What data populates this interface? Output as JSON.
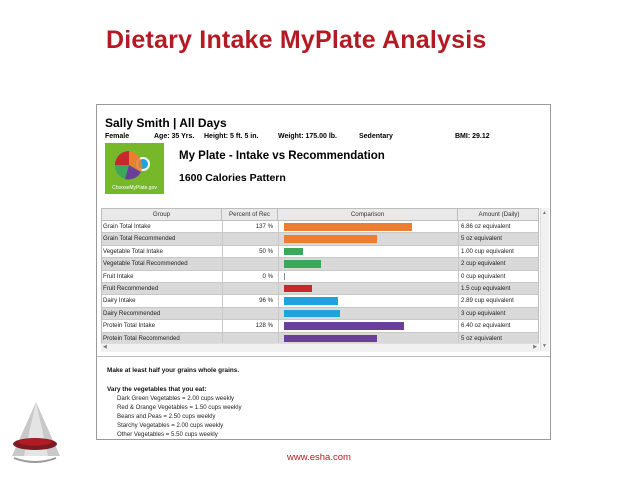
{
  "slide": {
    "title": "Dietary Intake MyPlate Analysis",
    "footer": "www.esha.com"
  },
  "profile": {
    "name": "Sally Smith | All Days",
    "gender": "Female",
    "age": "Age: 35 Yrs.",
    "height": "Height: 5 ft. 5 in.",
    "weight": "Weight: 175.00 lb.",
    "activity": "Sedentary",
    "bmi": "BMI: 29.12"
  },
  "myplate": {
    "logo_text": "ChooseMyPlate.gov",
    "groups": [
      "Fruits",
      "Grains",
      "Vegetables",
      "Protein",
      "Dairy"
    ],
    "title": "My Plate - Intake vs Recommendation",
    "pattern": "1600 Calories Pattern"
  },
  "table": {
    "columns": [
      "Group",
      "Percent of Rec",
      "Comparison",
      "Amount (Daily)"
    ],
    "max_value": 9.2,
    "rows": [
      {
        "group": "Grain Total Intake",
        "pct": "137 %",
        "amount": "6.86 oz equivalent",
        "value": 6.86,
        "color": "#ee7d30"
      },
      {
        "group": "Grain Total Recommended",
        "pct": "",
        "amount": "5 oz equivalent",
        "value": 5,
        "color": "#ee7d30"
      },
      {
        "group": "Vegetable Total Intake",
        "pct": "50 %",
        "amount": "1.00 cup equivalent",
        "value": 1.0,
        "color": "#3aaa5a"
      },
      {
        "group": "Vegetable Total Recommended",
        "pct": "",
        "amount": "2 cup equivalent",
        "value": 2,
        "color": "#3aaa5a"
      },
      {
        "group": "Fruit Intake",
        "pct": "0 %",
        "amount": "0 cup equivalent",
        "value": 0,
        "color": "#c8272e"
      },
      {
        "group": "Fruit Recommended",
        "pct": "",
        "amount": "1.5 cup equivalent",
        "value": 1.5,
        "color": "#c8272e"
      },
      {
        "group": "Dairy Intake",
        "pct": "96 %",
        "amount": "2.89 cup equivalent",
        "value": 2.89,
        "color": "#1fa3dc"
      },
      {
        "group": "Dairy Recommended",
        "pct": "",
        "amount": "3 cup equivalent",
        "value": 3,
        "color": "#1fa3dc"
      },
      {
        "group": "Protein Total Intake",
        "pct": "128 %",
        "amount": "6.40 oz equivalent",
        "value": 6.4,
        "color": "#6a3f99"
      },
      {
        "group": "Protein Total Recommended",
        "pct": "",
        "amount": "5 oz equivalent",
        "value": 5,
        "color": "#6a3f99"
      }
    ]
  },
  "notes": {
    "grains": "Make at least half your grains whole grains.",
    "vegetables_heading": "Vary the vegetables that you eat:",
    "vegetables": [
      "Dark Green Vegetables = 2.00 cups weekly",
      "Red & Orange Vegetables = 1.50 cups weekly",
      "Beans and Peas = 2.50 cups weekly",
      "Starchy Vegetables = 2.00 cups weekly",
      "Other Vegetables = 5.50 cups weekly"
    ]
  }
}
